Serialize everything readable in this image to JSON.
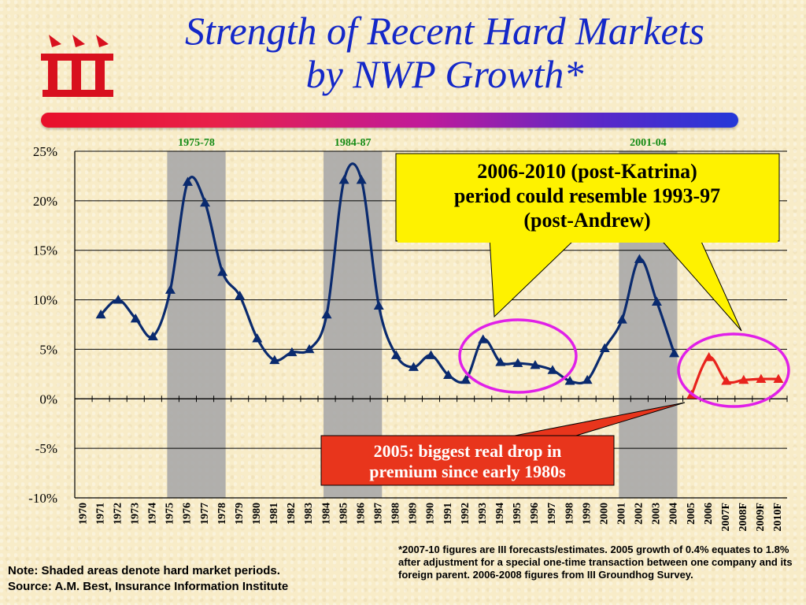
{
  "title": {
    "line1": "Strength of Recent Hard Markets",
    "line2": "by NWP Growth*"
  },
  "logo": {
    "text": "iii",
    "color": "#d8101e"
  },
  "callouts": {
    "yellow": "2006-2010 (post-Katrina) period could resemble 1993-97 (post-Andrew)",
    "red": "2005: biggest real drop in premium since early 1980s"
  },
  "footer": {
    "note_line1": "Note: Shaded areas denote hard market periods.",
    "note_line2": "Source:  A.M. Best, Insurance Information Institute",
    "footnote": "*2007-10 figures are III  forecasts/estimates. 2005 growth of 0.4% equates to 1.8% after adjustment for a special one-time transaction between one company and its foreign parent. 2006-2008 figures from III Groundhog Survey."
  },
  "colors": {
    "actual_line": "#0a2a6e",
    "forecast_line": "#e8231c",
    "hard_market_shade": "#a8a8a8",
    "circle": "#e020e8",
    "callout_yellow": "#fef200",
    "callout_red": "#e8351c",
    "period_label": "#138a13"
  },
  "chart_data": {
    "type": "line",
    "categories": [
      "1970",
      "1971",
      "1972",
      "1973",
      "1974",
      "1975",
      "1976",
      "1977",
      "1978",
      "1979",
      "1980",
      "1981",
      "1982",
      "1983",
      "1984",
      "1985",
      "1986",
      "1987",
      "1988",
      "1989",
      "1990",
      "1991",
      "1992",
      "1993",
      "1994",
      "1995",
      "1996",
      "1997",
      "1998",
      "1999",
      "2000",
      "2001",
      "2002",
      "2003",
      "2004",
      "2005",
      "2006",
      "2007F",
      "2008F",
      "2009F",
      "2010F"
    ],
    "series": [
      {
        "values": [
          null,
          8.5,
          10.0,
          8.1,
          6.3,
          11.0,
          21.9,
          19.8,
          12.8,
          10.4,
          6.1,
          3.9,
          4.7,
          5.0,
          8.5,
          22.1,
          22.1,
          9.4,
          4.4,
          3.2,
          4.4,
          2.4,
          1.9,
          6.0,
          3.7,
          3.6,
          3.4,
          2.9,
          1.8,
          1.9,
          5.1,
          8.0,
          14.1,
          9.8,
          4.6,
          null,
          null,
          null,
          null,
          null,
          null
        ]
      },
      {
        "values": [
          null,
          null,
          null,
          null,
          null,
          null,
          null,
          null,
          null,
          null,
          null,
          null,
          null,
          null,
          null,
          null,
          null,
          null,
          null,
          null,
          null,
          null,
          null,
          null,
          null,
          null,
          null,
          null,
          null,
          null,
          null,
          null,
          null,
          null,
          null,
          0.4,
          4.2,
          1.8,
          1.9,
          2.0,
          2.0
        ]
      }
    ],
    "hard_market_periods": [
      {
        "label": "1975-78",
        "start": "1975",
        "end": "1978"
      },
      {
        "label": "1984-87",
        "start": "1984",
        "end": "1987"
      },
      {
        "label": "2001-04",
        "start": "2001",
        "end": "2004"
      }
    ],
    "y_ticks": [
      "25%",
      "20%",
      "15%",
      "10%",
      "5%",
      "0%",
      "-5%",
      "-10%"
    ],
    "ylim": [
      -10,
      25
    ],
    "grid": true
  }
}
